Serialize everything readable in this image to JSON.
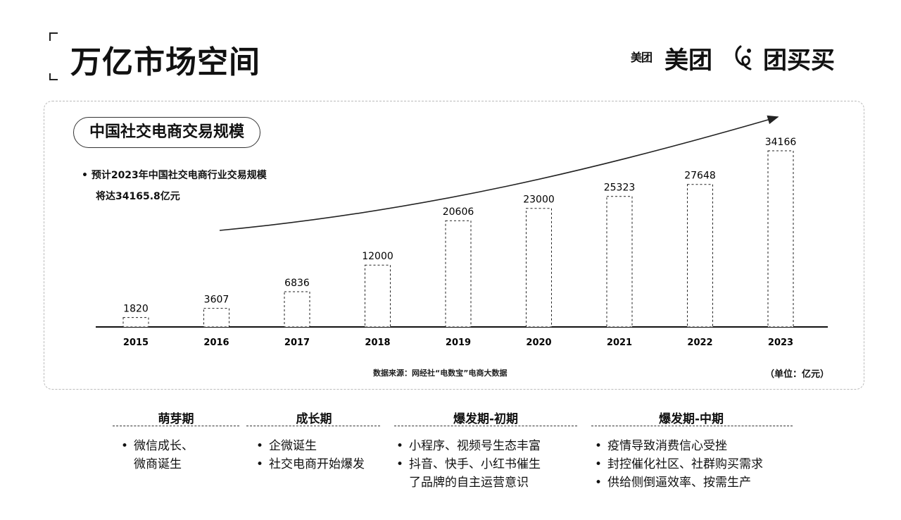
{
  "header": {
    "title": "万亿市场空间",
    "brand_badge": "美团",
    "brand_name": "美团",
    "partner_name": "团买买"
  },
  "panel": {
    "chip_label": "中国社交电商交易规模",
    "note_line1": "预计2023年中国社交电商行业交易规模",
    "note_line2": "将达34165.8亿元",
    "source": "数据来源：网经社“电数宝”电商大数据",
    "unit": "（单位：亿元）"
  },
  "chart_data": {
    "type": "bar",
    "title": "中国社交电商交易规模",
    "categories": [
      "2015",
      "2016",
      "2017",
      "2018",
      "2019",
      "2020",
      "2021",
      "2022",
      "2023"
    ],
    "values": [
      1820,
      3607,
      6836,
      12000,
      20606,
      23000,
      25323,
      27648,
      34166
    ],
    "value_labels": [
      "1820",
      "3607",
      "6836",
      "12000",
      "20606",
      "23000",
      "25323",
      "27648",
      "34166"
    ],
    "xlabel": "",
    "ylabel": "",
    "ylim": [
      0,
      34166
    ],
    "legend": "none",
    "colors": {
      "bar": "#ffffff",
      "stroke": "#222222",
      "axis": "#111111"
    }
  },
  "phases": [
    {
      "title": "萌芽期",
      "bullets": [
        [
          "微信成长、",
          "微商诞生"
        ]
      ]
    },
    {
      "title": "成长期",
      "bullets": [
        [
          "企微诞生"
        ],
        [
          "社交电商开始爆发"
        ]
      ]
    },
    {
      "title": "爆发期-初期",
      "bullets": [
        [
          "小程序、视频号生态丰富"
        ],
        [
          "抖音、快手、小红书催生",
          "了品牌的自主运营意识"
        ]
      ]
    },
    {
      "title": "爆发期-中期",
      "bullets": [
        [
          "疫情导致消费信心受挫"
        ],
        [
          "封控催化社区、社群购买需求"
        ],
        [
          "供给侧倒逼效率、按需生产"
        ]
      ]
    }
  ]
}
